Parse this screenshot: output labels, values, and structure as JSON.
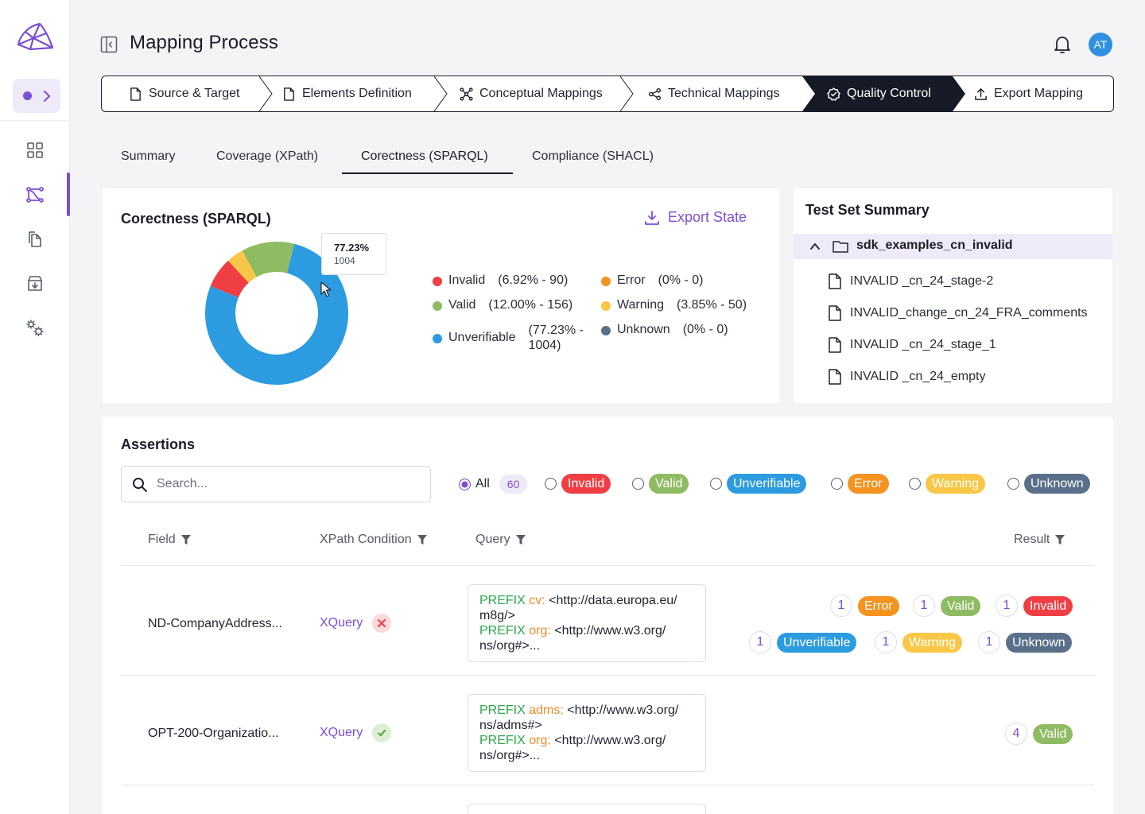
{
  "header": {
    "title": "Mapping Process",
    "avatar_initials": "AT"
  },
  "sidebar": {
    "items": [
      {
        "name": "dashboard-icon"
      },
      {
        "name": "mapping-flow-icon",
        "active": true
      },
      {
        "name": "copy-documents-icon"
      },
      {
        "name": "archive-download-icon"
      },
      {
        "name": "settings-gears-icon"
      }
    ]
  },
  "stepper": {
    "steps": [
      {
        "label": "Source & Target",
        "icon": "file-icon"
      },
      {
        "label": "Elements Definition",
        "icon": "file-icon"
      },
      {
        "label": "Conceptual Mappings",
        "icon": "network-icon"
      },
      {
        "label": "Technical Mappings",
        "icon": "share-nodes-icon"
      },
      {
        "label": "Quality Control",
        "icon": "badge-check-icon",
        "active": true
      },
      {
        "label": "Export Mapping",
        "icon": "upload-icon"
      }
    ]
  },
  "tabs": [
    "Summary",
    "Coverage (XPath)",
    "Corectness (SPARQL)",
    "Compliance (SHACL)"
  ],
  "active_tab": "Corectness (SPARQL)",
  "chart_card": {
    "title": "Corectness (SPARQL)",
    "export_label": "Export State",
    "tooltip": {
      "percent": "77.23%",
      "count": "1004"
    },
    "legend": [
      {
        "label": "Invalid",
        "value": "(6.92% - 90)"
      },
      {
        "label": "Error",
        "value": "(0% - 0)"
      },
      {
        "label": "Valid",
        "value": "(12.00% - 156)"
      },
      {
        "label": "Warning",
        "value": "(3.85% - 50)"
      },
      {
        "label": "Unverifiable",
        "value_line1": "(77.23% -",
        "value_line2": "1004)"
      },
      {
        "label": "Unknown",
        "value": "(0% - 0)"
      }
    ]
  },
  "chart_data": {
    "type": "pie",
    "categories": [
      "Unverifiable",
      "Invalid",
      "Warning",
      "Valid",
      "Error",
      "Unknown"
    ],
    "values": [
      1004,
      90,
      50,
      156,
      0,
      0
    ],
    "percents": [
      77.23,
      6.92,
      3.85,
      12.0,
      0,
      0
    ],
    "colors": [
      "#2c9be0",
      "#ef3f45",
      "#f9c747",
      "#8fbb63",
      "#f4931f",
      "#5a6f8a"
    ],
    "title": "Corectness (SPARQL)",
    "legend": "right"
  },
  "test_set": {
    "title": "Test Set Summary",
    "folder": "sdk_examples_cn_invalid",
    "files": [
      "INVALID _cn_24_stage-2",
      "INVALID_change_cn_24_FRA_comments",
      "INVALID _cn_24_stage_1",
      "INVALID _cn_24_empty"
    ]
  },
  "assertions": {
    "title": "Assertions",
    "search_placeholder": "Search...",
    "filters": {
      "all_label": "All",
      "all_count": "60",
      "options": [
        "Invalid",
        "Valid",
        "Unverifiable",
        "Error",
        "Warning",
        "Unknown"
      ]
    },
    "columns": [
      "Field",
      "XPath Condition",
      "Query",
      "Result"
    ],
    "rows": [
      {
        "field": "ND-CompanyAddress...",
        "xpath_link": "XQuery",
        "xpath_status": "error",
        "query": [
          {
            "kw": "PREFIX",
            "prefix": "cv:",
            "rest": " <http://data.europa.eu/"
          },
          {
            "text": "m8g/>"
          },
          {
            "kw": "PREFIX",
            "prefix": "org:",
            "rest": " <http://www.w3.org/"
          },
          {
            "text": "ns/org#>..."
          }
        ],
        "results": [
          {
            "count": "1",
            "label": "Error"
          },
          {
            "count": "1",
            "label": "Valid"
          },
          {
            "count": "1",
            "label": "Invalid"
          },
          {
            "count": "1",
            "label": "Unverifiable"
          },
          {
            "count": "1",
            "label": "Warning"
          },
          {
            "count": "1",
            "label": "Unknown"
          }
        ]
      },
      {
        "field": "OPT-200-Organizatio...",
        "xpath_link": "XQuery",
        "xpath_status": "ok",
        "query": [
          {
            "kw": "PREFIX",
            "prefix": "adms:",
            "rest": " <http://www.w3.org/"
          },
          {
            "text": "ns/adms#>"
          },
          {
            "kw": "PREFIX",
            "prefix": "org:",
            "rest": " <http://www.w3.org/"
          },
          {
            "text": "ns/org#>..."
          }
        ],
        "results": [
          {
            "count": "4",
            "label": "Valid"
          }
        ]
      }
    ]
  }
}
